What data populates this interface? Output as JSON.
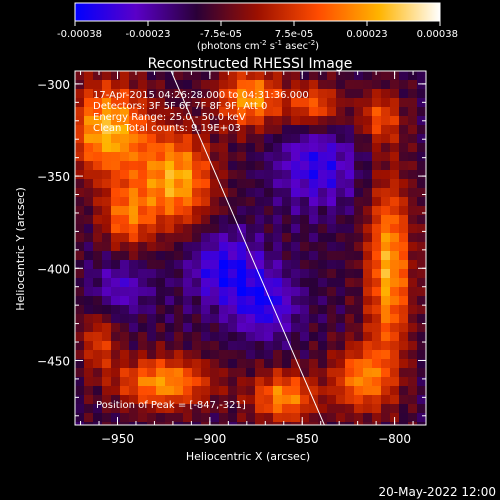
{
  "colorbar": {
    "ticks": [
      "-0.00038",
      "-0.00023",
      "-7.5e-05",
      "7.5e-05",
      "0.00023",
      "0.00038"
    ],
    "unit_label": "(photons cm",
    "unit_sup1": "-2",
    "unit_mid": " s",
    "unit_sup2": "-1",
    "unit_end": " asec",
    "unit_sup3": "-2",
    "unit_close": ")"
  },
  "chart_data": {
    "type": "heatmap",
    "title": "Reconstructed RHESSI Image",
    "xlabel": "Heliocentric X (arcsec)",
    "ylabel": "Heliocentric Y (arcsec)",
    "xlim": [
      -973,
      -783
    ],
    "ylim": [
      -485,
      -293
    ],
    "x_ticks": [
      -950,
      -900,
      -850,
      -800
    ],
    "y_ticks": [
      -300,
      -350,
      -400,
      -450
    ],
    "x_tick_labels": [
      "−950",
      "−900",
      "−850",
      "−800"
    ],
    "y_tick_labels": [
      "−300",
      "−350",
      "−400",
      "−450"
    ],
    "color_range": [
      -0.00038,
      0.00038
    ],
    "colormap": [
      "#0000ff",
      "#5a00c8",
      "#2a0038",
      "#9c1000",
      "#ff4c00",
      "#ffb400",
      "#ffffff"
    ],
    "annotations": [
      "17-Apr-2015 04:26:28.000 to 04:31:36.000",
      "Detectors: 3F 5F 6F 7F 8F 9F, Att 0",
      "Energy Range: 25.0 - 50.0 keV",
      "Clean     Total counts: 9.19E+03"
    ],
    "peak_label": "Position of Peak = [-847,-321]",
    "limb_line": [
      [
        -921,
        -293
      ],
      [
        -838,
        -485
      ]
    ],
    "blobs": [
      {
        "x": -955,
        "y": -325,
        "sx": 22,
        "sy": 26,
        "a": 0.00038
      },
      {
        "x": -918,
        "y": -352,
        "sx": 20,
        "sy": 26,
        "a": 0.00036
      },
      {
        "x": -945,
        "y": -372,
        "sx": 14,
        "sy": 18,
        "a": 0.00026
      },
      {
        "x": -878,
        "y": -308,
        "sx": 18,
        "sy": 16,
        "a": 0.00034
      },
      {
        "x": -843,
        "y": -312,
        "sx": 14,
        "sy": 12,
        "a": 0.00026
      },
      {
        "x": -808,
        "y": -318,
        "sx": 12,
        "sy": 14,
        "a": 0.00022
      },
      {
        "x": -803,
        "y": -400,
        "sx": 12,
        "sy": 50,
        "a": 0.00036
      },
      {
        "x": -818,
        "y": -460,
        "sx": 16,
        "sy": 18,
        "a": 0.0003
      },
      {
        "x": -860,
        "y": -470,
        "sx": 18,
        "sy": 14,
        "a": 0.00032
      },
      {
        "x": -925,
        "y": -462,
        "sx": 26,
        "sy": 14,
        "a": 0.00034
      },
      {
        "x": -960,
        "y": -440,
        "sx": 10,
        "sy": 16,
        "a": 0.0002
      },
      {
        "x": -892,
        "y": -400,
        "sx": 20,
        "sy": 20,
        "a": -0.00022
      },
      {
        "x": -870,
        "y": -420,
        "sx": 18,
        "sy": 18,
        "a": -0.0002
      },
      {
        "x": -842,
        "y": -345,
        "sx": 22,
        "sy": 22,
        "a": -0.0002
      },
      {
        "x": -948,
        "y": -410,
        "sx": 16,
        "sy": 16,
        "a": -0.00014
      }
    ]
  },
  "timestamp": "20-May-2022 12:00"
}
